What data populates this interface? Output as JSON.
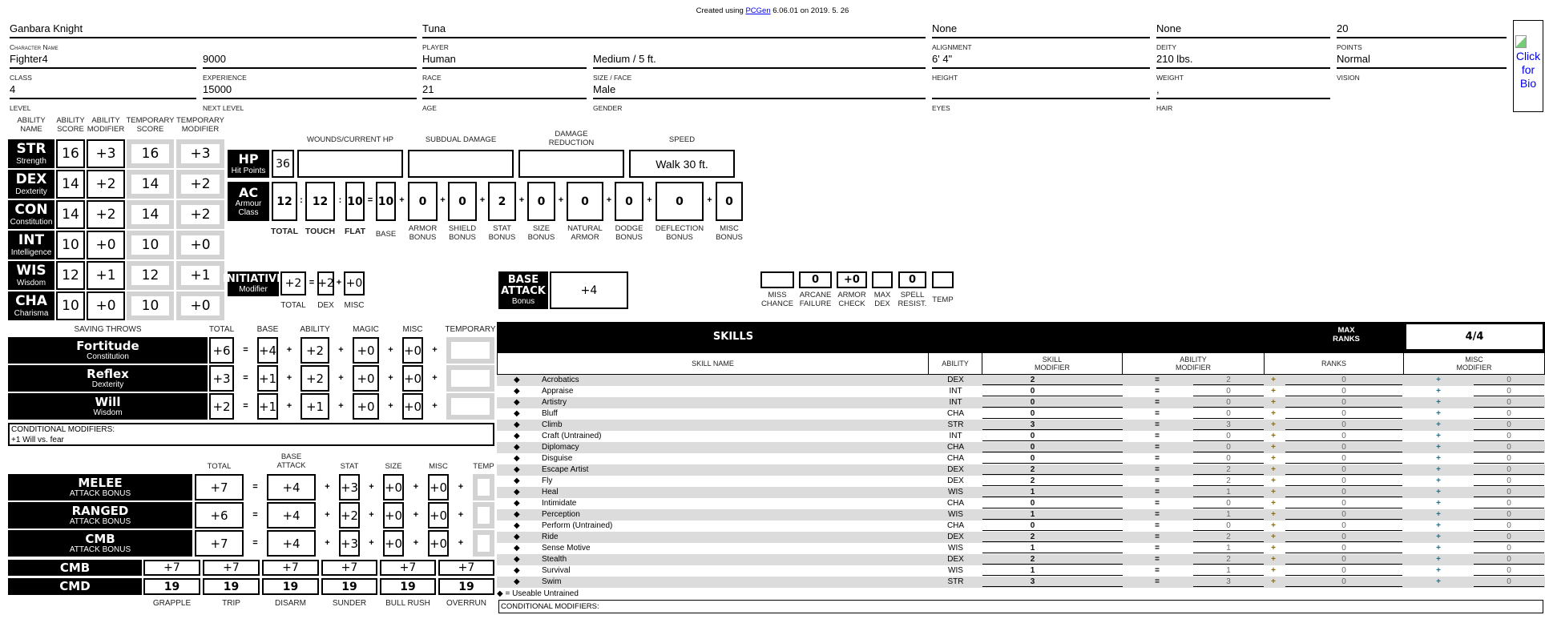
{
  "header": {
    "created_prefix": "Created using",
    "link": "PCGen",
    "created_suffix": "6.06.01 on 2019. 5. 26"
  },
  "character": {
    "fields": [
      {
        "label": "Character Name",
        "value": "Ganbara Knight"
      },
      {
        "label": "PLAYER",
        "value": "Tuna"
      },
      {
        "label": "ALIGNMENT",
        "value": "None"
      },
      {
        "label": "DEITY",
        "value": "None"
      },
      {
        "label": "POINTS",
        "value": "20"
      },
      {
        "label": "CLASS",
        "value": "Fighter4"
      },
      {
        "label": "EXPERIENCE",
        "value": "9000"
      },
      {
        "label": "RACE",
        "value": "Human"
      },
      {
        "label": "SIZE / FACE",
        "value": "Medium / 5 ft."
      },
      {
        "label": "HEIGHT",
        "value": "6' 4\""
      },
      {
        "label": "WEIGHT",
        "value": "210 lbs."
      },
      {
        "label": "VISION",
        "value": "Normal"
      },
      {
        "label": "LEVEL",
        "value": "4"
      },
      {
        "label": "NEXT LEVEL",
        "value": "15000"
      },
      {
        "label": "AGE",
        "value": "21"
      },
      {
        "label": "GENDER",
        "value": "Male"
      },
      {
        "label": "EYES",
        "value": ""
      },
      {
        "label": "HAIR",
        "value": ","
      }
    ],
    "bio_link": "Click for Bio"
  },
  "abilities": {
    "headers": [
      "ABILITY\nNAME",
      "ABILITY\nSCORE",
      "ABILITY\nMODIFIER",
      "TEMPORARY\nSCORE",
      "TEMPORARY\nMODIFIER"
    ],
    "rows": [
      {
        "abbr": "STR",
        "name": "Strength",
        "score": "16",
        "mod": "+3",
        "temp_score": "16",
        "temp_mod": "+3"
      },
      {
        "abbr": "DEX",
        "name": "Dexterity",
        "score": "14",
        "mod": "+2",
        "temp_score": "14",
        "temp_mod": "+2"
      },
      {
        "abbr": "CON",
        "name": "Constitution",
        "score": "14",
        "mod": "+2",
        "temp_score": "14",
        "temp_mod": "+2"
      },
      {
        "abbr": "INT",
        "name": "Intelligence",
        "score": "10",
        "mod": "+0",
        "temp_score": "10",
        "temp_mod": "+0"
      },
      {
        "abbr": "WIS",
        "name": "Wisdom",
        "score": "12",
        "mod": "+1",
        "temp_score": "12",
        "temp_mod": "+1"
      },
      {
        "abbr": "CHA",
        "name": "Charisma",
        "score": "10",
        "mod": "+0",
        "temp_score": "10",
        "temp_mod": "+0"
      }
    ]
  },
  "hp": {
    "label": "HP",
    "sub": "Hit Points",
    "value": "36",
    "headers": [
      "WOUNDS/CURRENT HP",
      "SUBDUAL DAMAGE",
      "DAMAGE\nREDUCTION",
      "SPEED"
    ],
    "wounds": "",
    "subdual": "",
    "damage_reduction": "",
    "speed": "Walk 30 ft."
  },
  "ac": {
    "label": "AC",
    "sub": "Armour\nClass",
    "values": [
      "12",
      "12",
      "10",
      "10",
      "0",
      "0",
      "2",
      "0",
      "0",
      "0",
      "0",
      "0"
    ],
    "ops": [
      ":",
      ":",
      "=",
      "+",
      "+",
      "+",
      "+",
      "+",
      "+",
      "+",
      "+"
    ],
    "labels": [
      "TOTAL",
      "TOUCH",
      "FLAT",
      "BASE",
      "ARMOR\nBONUS",
      "SHIELD\nBONUS",
      "STAT\nBONUS",
      "SIZE\nBONUS",
      "NATURAL\nARMOR",
      "DODGE\nBONUS",
      "DEFLECTION\nBONUS",
      "MISC\nBONUS"
    ]
  },
  "initiative": {
    "label": "INITIATIVE",
    "sub": "Modifier",
    "total": "+2",
    "dex": "+2",
    "misc": "+0",
    "ops": [
      "=",
      "+"
    ],
    "labels": [
      "TOTAL",
      "DEX",
      "MISC"
    ]
  },
  "base_attack": {
    "label": "BASE\nATTACK",
    "sub": "Bonus",
    "value": "+4"
  },
  "armor_check": {
    "values": [
      "",
      "0",
      "+0",
      "",
      "0",
      ""
    ],
    "labels": [
      "MISS\nCHANCE",
      "ARCANE\nFAILURE",
      "ARMOR\nCHECK",
      "MAX\nDEX",
      "SPELL\nRESIST.",
      "TEMP"
    ]
  },
  "saves": {
    "headers": [
      "SAVING THROWS",
      "TOTAL",
      "BASE",
      "ABILITY",
      "MAGIC",
      "MISC",
      "TEMPORARY"
    ],
    "ops": [
      "=",
      "+",
      "+",
      "+",
      "+"
    ],
    "rows": [
      {
        "name": "Fortitude",
        "ability": "Constitution",
        "total": "+6",
        "base": "+4",
        "ability_mod": "+2",
        "magic": "+0",
        "misc": "+0",
        "temp": ""
      },
      {
        "name": "Reflex",
        "ability": "Dexterity",
        "total": "+3",
        "base": "+1",
        "ability_mod": "+2",
        "magic": "+0",
        "misc": "+0",
        "temp": ""
      },
      {
        "name": "Will",
        "ability": "Wisdom",
        "total": "+2",
        "base": "+1",
        "ability_mod": "+1",
        "magic": "+0",
        "misc": "+0",
        "temp": ""
      }
    ],
    "conditional_label": "CONDITIONAL MODIFIERS:",
    "conditional_text": "+1 Will vs. fear"
  },
  "attacks": {
    "headers": [
      "TOTAL",
      "BASE\nATTACK",
      "STAT",
      "SIZE",
      "MISC",
      "TEMP"
    ],
    "ops": [
      "=",
      "+",
      "+",
      "+",
      "+"
    ],
    "rows": [
      {
        "name": "MELEE",
        "sub": "ATTACK BONUS",
        "total": "+7",
        "base": "+4",
        "stat": "+3",
        "size": "+0",
        "misc": "+0",
        "temp": ""
      },
      {
        "name": "RANGED",
        "sub": "ATTACK BONUS",
        "total": "+6",
        "base": "+4",
        "stat": "+2",
        "size": "+0",
        "misc": "+0",
        "temp": ""
      },
      {
        "name": "CMB",
        "sub": "ATTACK BONUS",
        "total": "+7",
        "base": "+4",
        "stat": "+3",
        "size": "+0",
        "misc": "+0",
        "temp": ""
      }
    ]
  },
  "maneuvers": {
    "cmb_label": "CMB",
    "cmd_label": "CMD",
    "cmb": [
      "+7",
      "+7",
      "+7",
      "+7",
      "+7",
      "+7"
    ],
    "cmd": [
      "19",
      "19",
      "19",
      "19",
      "19",
      "19"
    ],
    "labels": [
      "GRAPPLE",
      "TRIP",
      "DISARM",
      "SUNDER",
      "BULL RUSH",
      "OVERRUN"
    ]
  },
  "skills": {
    "title": "SKILLS",
    "max_ranks_label": "MAX\nRANKS",
    "max_ranks": "4/4",
    "headers": [
      "SKILL NAME",
      "ABILITY",
      "SKILL\nMODIFIER",
      "ABILITY\nMODIFIER",
      "RANKS",
      "MISC\nMODIFIER"
    ],
    "untrained_icon": "diamond-icon",
    "rows": [
      {
        "name": "Acrobatics",
        "ability": "DEX",
        "mod": "2",
        "ability_mod": "2",
        "ranks": "0",
        "misc": "0"
      },
      {
        "name": "Appraise",
        "ability": "INT",
        "mod": "0",
        "ability_mod": "0",
        "ranks": "0",
        "misc": "0"
      },
      {
        "name": "Artistry",
        "ability": "INT",
        "mod": "0",
        "ability_mod": "0",
        "ranks": "0",
        "misc": "0"
      },
      {
        "name": "Bluff",
        "ability": "CHA",
        "mod": "0",
        "ability_mod": "0",
        "ranks": "0",
        "misc": "0"
      },
      {
        "name": "Climb",
        "ability": "STR",
        "mod": "3",
        "ability_mod": "3",
        "ranks": "0",
        "misc": "0"
      },
      {
        "name": "Craft (Untrained)",
        "ability": "INT",
        "mod": "0",
        "ability_mod": "0",
        "ranks": "0",
        "misc": "0"
      },
      {
        "name": "Diplomacy",
        "ability": "CHA",
        "mod": "0",
        "ability_mod": "0",
        "ranks": "0",
        "misc": "0"
      },
      {
        "name": "Disguise",
        "ability": "CHA",
        "mod": "0",
        "ability_mod": "0",
        "ranks": "0",
        "misc": "0"
      },
      {
        "name": "Escape Artist",
        "ability": "DEX",
        "mod": "2",
        "ability_mod": "2",
        "ranks": "0",
        "misc": "0"
      },
      {
        "name": "Fly",
        "ability": "DEX",
        "mod": "2",
        "ability_mod": "2",
        "ranks": "0",
        "misc": "0"
      },
      {
        "name": "Heal",
        "ability": "WIS",
        "mod": "1",
        "ability_mod": "1",
        "ranks": "0",
        "misc": "0"
      },
      {
        "name": "Intimidate",
        "ability": "CHA",
        "mod": "0",
        "ability_mod": "0",
        "ranks": "0",
        "misc": "0"
      },
      {
        "name": "Perception",
        "ability": "WIS",
        "mod": "1",
        "ability_mod": "1",
        "ranks": "0",
        "misc": "0"
      },
      {
        "name": "Perform (Untrained)",
        "ability": "CHA",
        "mod": "0",
        "ability_mod": "0",
        "ranks": "0",
        "misc": "0"
      },
      {
        "name": "Ride",
        "ability": "DEX",
        "mod": "2",
        "ability_mod": "2",
        "ranks": "0",
        "misc": "0"
      },
      {
        "name": "Sense Motive",
        "ability": "WIS",
        "mod": "1",
        "ability_mod": "1",
        "ranks": "0",
        "misc": "0"
      },
      {
        "name": "Stealth",
        "ability": "DEX",
        "mod": "2",
        "ability_mod": "2",
        "ranks": "0",
        "misc": "0"
      },
      {
        "name": "Survival",
        "ability": "WIS",
        "mod": "1",
        "ability_mod": "1",
        "ranks": "0",
        "misc": "0"
      },
      {
        "name": "Swim",
        "ability": "STR",
        "mod": "3",
        "ability_mod": "3",
        "ranks": "0",
        "misc": "0"
      }
    ],
    "ops": [
      "=",
      "+",
      "+"
    ],
    "legend": "= Useable Untrained",
    "conditional_label": "CONDITIONAL MODIFIERS:"
  },
  "colors": {
    "row_alt": "#dcdcdc",
    "temp_frame": "#d3d3d3",
    "link": "#0000ee",
    "plus_ranks": "#8a6d00",
    "plus_misc": "#1f6f8b"
  }
}
